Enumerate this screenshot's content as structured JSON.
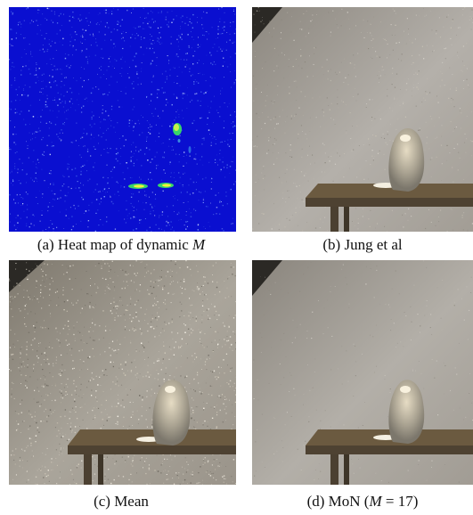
{
  "figure": {
    "panels": [
      {
        "id": "a",
        "caption_prefix": "(a) Heat map of dynamic ",
        "caption_var": "M",
        "caption_suffix": ""
      },
      {
        "id": "b",
        "caption_prefix": "(b) Jung et al",
        "caption_var": "",
        "caption_suffix": ""
      },
      {
        "id": "c",
        "caption_prefix": "(c) Mean",
        "caption_var": "",
        "caption_suffix": ""
      },
      {
        "id": "d",
        "caption_prefix": "(d) MoN (",
        "caption_var": "M",
        "caption_suffix": " = 17)"
      }
    ]
  },
  "colors": {
    "heatmap_background": "#0a0fd0",
    "heatmap_hot": "#f4f23a",
    "heatmap_warm": "#37d46b",
    "wall_light": "#b9b6b0",
    "wall_dark": "#6f6a62",
    "table_top": "#6b5a40",
    "table_leg": "#4b4031"
  }
}
